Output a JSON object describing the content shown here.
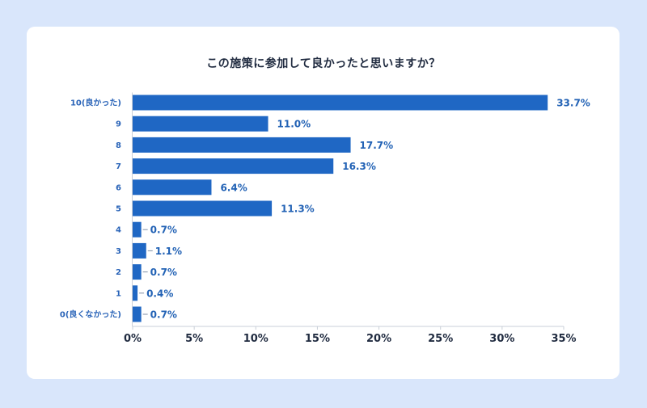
{
  "chart_data": {
    "type": "bar",
    "orientation": "horizontal",
    "title": "この施策に参加して良かったと思いますか？",
    "xlabel": "",
    "ylabel": "",
    "categories": [
      "10(良かった)",
      "9",
      "8",
      "7",
      "6",
      "5",
      "4",
      "3",
      "2",
      "1",
      "0(良くなかった)"
    ],
    "values": [
      33.7,
      11.0,
      17.7,
      16.3,
      6.4,
      11.3,
      0.7,
      1.1,
      0.7,
      0.4,
      0.7
    ],
    "value_labels": [
      "33.7%",
      "11.0%",
      "17.7%",
      "16.3%",
      "6.4%",
      "11.3%",
      "0.7%",
      "1.1%",
      "0.7%",
      "0.4%",
      "0.7%"
    ],
    "xlim": [
      0,
      35
    ],
    "xticks": [
      0,
      5,
      10,
      15,
      20,
      25,
      30,
      35
    ],
    "xtick_labels": [
      "0%",
      "5%",
      "10%",
      "15%",
      "20%",
      "25%",
      "30%",
      "35%"
    ],
    "grid": false,
    "legend": "none",
    "colors": {
      "bar": "#1f67c4",
      "value_text": "#2262b5",
      "category_text": "#2a64b8",
      "axis": "#c9cfd8",
      "background": "#d9e6fb",
      "card": "#ffffff"
    }
  }
}
